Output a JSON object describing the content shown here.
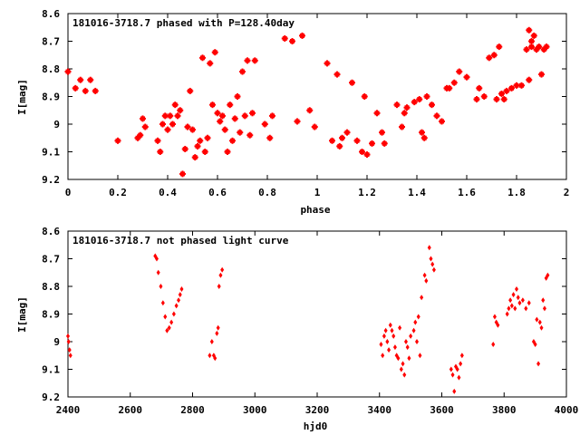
{
  "chart_data": [
    {
      "type": "scatter",
      "title": "181016-3718.7 phased with P=128.40day",
      "xlabel": "phase",
      "ylabel": "I[mag]",
      "xlim": [
        0,
        2
      ],
      "ylim": [
        9.2,
        8.6
      ],
      "y_inverted": true,
      "x_ticks": [
        "0",
        "0.2",
        "0.4",
        "0.6",
        "0.8",
        "1",
        "1.2",
        "1.4",
        "1.6",
        "1.8",
        "2"
      ],
      "y_ticks": [
        "8.6",
        "8.7",
        "8.8",
        "8.9",
        "9",
        "9.1",
        "9.2"
      ],
      "grid": false,
      "marker_color": "#ff0000",
      "points": [
        [
          0.0,
          8.81
        ],
        [
          0.03,
          8.87
        ],
        [
          0.05,
          8.84
        ],
        [
          0.07,
          8.88
        ],
        [
          0.09,
          8.84
        ],
        [
          0.11,
          8.88
        ],
        [
          0.2,
          9.06
        ],
        [
          0.28,
          9.05
        ],
        [
          0.29,
          9.04
        ],
        [
          0.3,
          8.98
        ],
        [
          0.31,
          9.01
        ],
        [
          0.36,
          9.06
        ],
        [
          0.37,
          9.1
        ],
        [
          0.38,
          9.0
        ],
        [
          0.39,
          8.97
        ],
        [
          0.4,
          9.02
        ],
        [
          0.41,
          8.97
        ],
        [
          0.42,
          9.0
        ],
        [
          0.43,
          8.93
        ],
        [
          0.44,
          8.97
        ],
        [
          0.45,
          8.95
        ],
        [
          0.46,
          9.18
        ],
        [
          0.47,
          9.09
        ],
        [
          0.48,
          9.01
        ],
        [
          0.49,
          8.88
        ],
        [
          0.5,
          9.02
        ],
        [
          0.51,
          9.12
        ],
        [
          0.52,
          9.08
        ],
        [
          0.53,
          9.06
        ],
        [
          0.54,
          8.76
        ],
        [
          0.55,
          9.1
        ],
        [
          0.56,
          9.05
        ],
        [
          0.57,
          8.78
        ],
        [
          0.58,
          8.93
        ],
        [
          0.59,
          8.74
        ],
        [
          0.6,
          8.96
        ],
        [
          0.61,
          8.99
        ],
        [
          0.62,
          8.97
        ],
        [
          0.63,
          9.02
        ],
        [
          0.64,
          9.1
        ],
        [
          0.65,
          8.93
        ],
        [
          0.66,
          9.06
        ],
        [
          0.67,
          8.98
        ],
        [
          0.68,
          8.9
        ],
        [
          0.69,
          9.03
        ],
        [
          0.7,
          8.81
        ],
        [
          0.71,
          8.97
        ],
        [
          0.72,
          8.77
        ],
        [
          0.73,
          9.04
        ],
        [
          0.74,
          8.96
        ],
        [
          0.75,
          8.77
        ],
        [
          0.79,
          9.0
        ],
        [
          0.81,
          9.05
        ],
        [
          0.82,
          8.97
        ],
        [
          0.87,
          8.69
        ],
        [
          0.9,
          8.7
        ],
        [
          0.92,
          8.99
        ],
        [
          0.94,
          8.68
        ],
        [
          0.97,
          8.95
        ],
        [
          0.99,
          9.01
        ],
        [
          1.04,
          8.78
        ],
        [
          1.06,
          9.06
        ],
        [
          1.08,
          8.82
        ],
        [
          1.09,
          9.08
        ],
        [
          1.1,
          9.05
        ],
        [
          1.12,
          9.03
        ],
        [
          1.14,
          8.85
        ],
        [
          1.16,
          9.06
        ],
        [
          1.18,
          9.1
        ],
        [
          1.19,
          8.9
        ],
        [
          1.2,
          9.11
        ],
        [
          1.22,
          9.07
        ],
        [
          1.24,
          8.96
        ],
        [
          1.26,
          9.03
        ],
        [
          1.27,
          9.07
        ],
        [
          1.32,
          8.93
        ],
        [
          1.34,
          9.01
        ],
        [
          1.35,
          8.96
        ],
        [
          1.36,
          8.94
        ],
        [
          1.39,
          8.92
        ],
        [
          1.41,
          8.91
        ],
        [
          1.42,
          9.03
        ],
        [
          1.43,
          9.05
        ],
        [
          1.44,
          8.9
        ],
        [
          1.46,
          8.93
        ],
        [
          1.48,
          8.97
        ],
        [
          1.5,
          8.99
        ],
        [
          1.52,
          8.87
        ],
        [
          1.53,
          8.87
        ],
        [
          1.55,
          8.85
        ],
        [
          1.57,
          8.81
        ],
        [
          1.6,
          8.83
        ],
        [
          1.64,
          8.91
        ],
        [
          1.65,
          8.87
        ],
        [
          1.67,
          8.9
        ],
        [
          1.69,
          8.76
        ],
        [
          1.71,
          8.75
        ],
        [
          1.72,
          8.91
        ],
        [
          1.73,
          8.72
        ],
        [
          1.74,
          8.89
        ],
        [
          1.76,
          8.88
        ],
        [
          1.78,
          8.87
        ],
        [
          1.8,
          8.86
        ],
        [
          1.82,
          8.86
        ],
        [
          1.84,
          8.73
        ],
        [
          1.85,
          8.66
        ],
        [
          1.86,
          8.7
        ],
        [
          1.87,
          8.68
        ],
        [
          1.88,
          8.73
        ],
        [
          1.89,
          8.72
        ],
        [
          1.9,
          8.82
        ],
        [
          1.91,
          8.73
        ],
        [
          1.92,
          8.72
        ],
        [
          1.75,
          8.91
        ],
        [
          1.85,
          8.84
        ],
        [
          1.86,
          8.72
        ]
      ]
    },
    {
      "type": "scatter",
      "title": "181016-3718.7 not phased light curve",
      "xlabel": "hjd0",
      "ylabel": "I[mag]",
      "xlim": [
        2400,
        4000
      ],
      "ylim": [
        9.2,
        8.6
      ],
      "y_inverted": true,
      "x_ticks": [
        "2400",
        "2600",
        "2800",
        "3000",
        "3200",
        "3400",
        "3600",
        "3800",
        "4000"
      ],
      "y_ticks": [
        "8.6",
        "8.7",
        "8.8",
        "8.9",
        "9",
        "9.1",
        "9.2"
      ],
      "grid": false,
      "marker_color": "#ff0000",
      "points": [
        [
          2400,
          8.98
        ],
        [
          2402,
          9.0
        ],
        [
          2405,
          9.03
        ],
        [
          2408,
          9.05
        ],
        [
          2680,
          8.69
        ],
        [
          2685,
          8.7
        ],
        [
          2690,
          8.75
        ],
        [
          2698,
          8.8
        ],
        [
          2705,
          8.86
        ],
        [
          2712,
          8.91
        ],
        [
          2718,
          8.96
        ],
        [
          2725,
          8.95
        ],
        [
          2732,
          8.93
        ],
        [
          2740,
          8.9
        ],
        [
          2748,
          8.87
        ],
        [
          2755,
          8.85
        ],
        [
          2760,
          8.83
        ],
        [
          2765,
          8.81
        ],
        [
          2855,
          9.05
        ],
        [
          2862,
          9.0
        ],
        [
          2868,
          9.05
        ],
        [
          2872,
          9.06
        ],
        [
          2878,
          8.97
        ],
        [
          2882,
          8.95
        ],
        [
          2885,
          8.8
        ],
        [
          2890,
          8.76
        ],
        [
          2895,
          8.74
        ],
        [
          3405,
          9.01
        ],
        [
          3410,
          9.05
        ],
        [
          3415,
          8.98
        ],
        [
          3420,
          8.96
        ],
        [
          3425,
          9.0
        ],
        [
          3430,
          9.03
        ],
        [
          3435,
          8.94
        ],
        [
          3440,
          8.96
        ],
        [
          3445,
          8.98
        ],
        [
          3450,
          9.02
        ],
        [
          3455,
          9.05
        ],
        [
          3460,
          9.06
        ],
        [
          3465,
          8.95
        ],
        [
          3470,
          9.1
        ],
        [
          3475,
          9.08
        ],
        [
          3480,
          9.12
        ],
        [
          3485,
          9.0
        ],
        [
          3490,
          9.02
        ],
        [
          3495,
          9.06
        ],
        [
          3500,
          8.98
        ],
        [
          3510,
          8.96
        ],
        [
          3515,
          8.93
        ],
        [
          3520,
          9.0
        ],
        [
          3525,
          8.91
        ],
        [
          3530,
          9.05
        ],
        [
          3535,
          8.84
        ],
        [
          3545,
          8.76
        ],
        [
          3550,
          8.78
        ],
        [
          3560,
          8.66
        ],
        [
          3565,
          8.7
        ],
        [
          3570,
          8.72
        ],
        [
          3575,
          8.74
        ],
        [
          3630,
          9.1
        ],
        [
          3635,
          9.12
        ],
        [
          3640,
          9.18
        ],
        [
          3645,
          9.09
        ],
        [
          3650,
          9.1
        ],
        [
          3655,
          9.13
        ],
        [
          3660,
          9.08
        ],
        [
          3665,
          9.05
        ],
        [
          3765,
          9.01
        ],
        [
          3770,
          8.91
        ],
        [
          3775,
          8.93
        ],
        [
          3780,
          8.94
        ],
        [
          3810,
          8.9
        ],
        [
          3815,
          8.88
        ],
        [
          3820,
          8.85
        ],
        [
          3825,
          8.87
        ],
        [
          3830,
          8.83
        ],
        [
          3835,
          8.88
        ],
        [
          3840,
          8.81
        ],
        [
          3845,
          8.84
        ],
        [
          3850,
          8.86
        ],
        [
          3860,
          8.85
        ],
        [
          3870,
          8.88
        ],
        [
          3880,
          8.86
        ],
        [
          3895,
          9.0
        ],
        [
          3900,
          9.01
        ],
        [
          3905,
          8.92
        ],
        [
          3910,
          9.08
        ],
        [
          3915,
          8.93
        ],
        [
          3920,
          8.95
        ],
        [
          3925,
          8.85
        ],
        [
          3930,
          8.88
        ],
        [
          3935,
          8.77
        ],
        [
          3940,
          8.76
        ]
      ]
    }
  ]
}
